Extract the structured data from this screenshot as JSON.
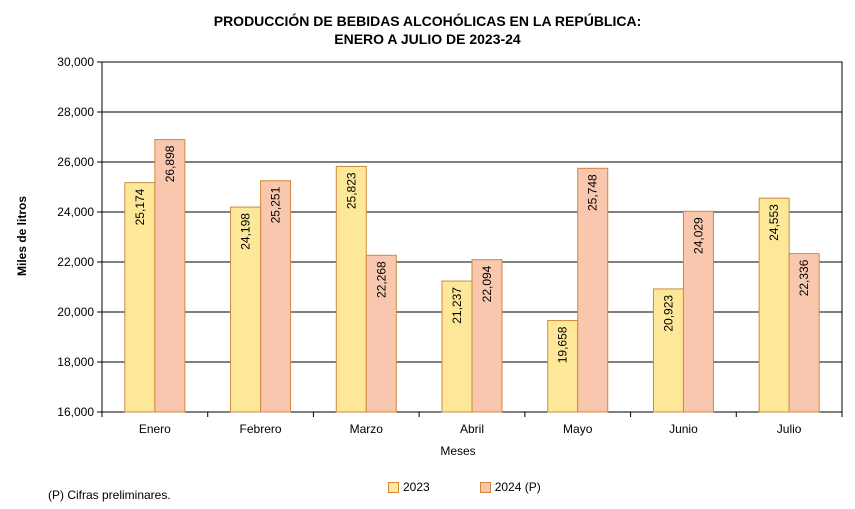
{
  "chart_data": {
    "type": "bar",
    "title_line1": "PRODUCCIÓN DE BEBIDAS ALCOHÓLICAS EN LA REPÚBLICA:",
    "title_line2": "ENERO A JULIO DE 2023-24",
    "xlabel": "Meses",
    "ylabel": "Miles de litros",
    "ylim": [
      16000,
      30000
    ],
    "yticks": [
      16000,
      18000,
      20000,
      22000,
      24000,
      26000,
      28000,
      30000
    ],
    "ytick_labels": [
      "16,000",
      "18,000",
      "20,000",
      "22,000",
      "24,000",
      "26,000",
      "28,000",
      "30,000"
    ],
    "categories": [
      "Enero",
      "Febrero",
      "Marzo",
      "Abril",
      "Mayo",
      "Junio",
      "Julio"
    ],
    "series": [
      {
        "name": "2023",
        "color": "#fde89a",
        "values": [
          25174,
          24198,
          25823,
          21237,
          19658,
          20923,
          24553
        ],
        "labels": [
          "25,174",
          "24,198",
          "25,823",
          "21,237",
          "19,658",
          "20,923",
          "24,553"
        ]
      },
      {
        "name": "2024 (P)",
        "color": "#f8c7ae",
        "values": [
          26898,
          25251,
          22268,
          22094,
          25748,
          24029,
          22336
        ],
        "labels": [
          "26,898",
          "25,251",
          "22,268",
          "22,094",
          "25,748",
          "24,029",
          "22,336"
        ]
      }
    ],
    "grid": true,
    "legend": "bottom-center"
  },
  "footnote": "(P) Cifras  preliminares.",
  "bar_border_color": "#d1883e"
}
